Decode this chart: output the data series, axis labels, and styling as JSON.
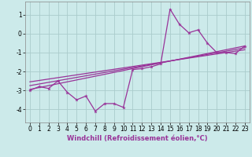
{
  "xlabel": "Windchill (Refroidissement éolien,°C)",
  "background_color": "#cceaea",
  "grid_color": "#aacccc",
  "line_color": "#993399",
  "xlim": [
    -0.5,
    23.5
  ],
  "ylim": [
    -4.7,
    1.7
  ],
  "yticks": [
    -4,
    -3,
    -2,
    -1,
    0,
    1
  ],
  "xticks": [
    0,
    1,
    2,
    3,
    4,
    5,
    6,
    7,
    8,
    9,
    10,
    11,
    12,
    13,
    14,
    15,
    16,
    17,
    18,
    19,
    20,
    21,
    22,
    23
  ],
  "series1_x": [
    0,
    1,
    2,
    3,
    4,
    5,
    6,
    7,
    8,
    9,
    10,
    11,
    12,
    13,
    14,
    15,
    16,
    17,
    18,
    19,
    20,
    21,
    22,
    23
  ],
  "series1_y": [
    -3.0,
    -2.8,
    -2.9,
    -2.5,
    -3.1,
    -3.5,
    -3.3,
    -4.1,
    -3.7,
    -3.7,
    -3.9,
    -1.9,
    -1.85,
    -1.75,
    -1.6,
    1.3,
    0.5,
    0.05,
    0.2,
    -0.5,
    -1.0,
    -1.0,
    -1.05,
    -0.65
  ],
  "series2_x": [
    0,
    23
  ],
  "series2_y": [
    -2.95,
    -0.65
  ],
  "series3_x": [
    0,
    23
  ],
  "series3_y": [
    -2.75,
    -0.75
  ],
  "series4_x": [
    0,
    23
  ],
  "series4_y": [
    -2.55,
    -0.85
  ],
  "tick_fontsize": 5.5,
  "xlabel_fontsize": 6.0
}
